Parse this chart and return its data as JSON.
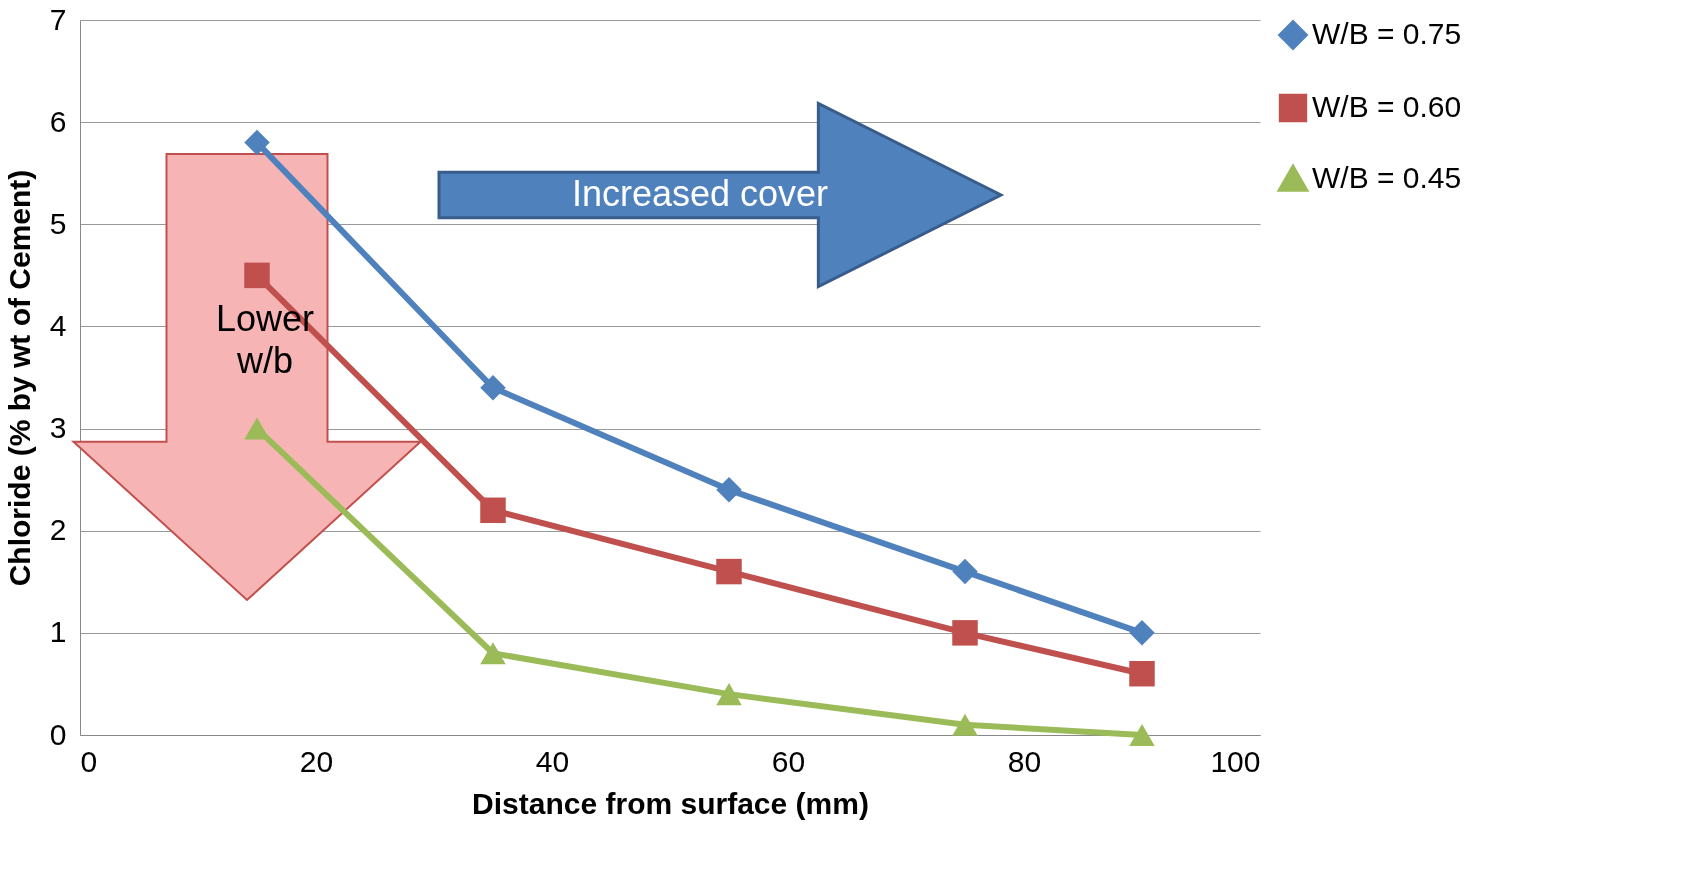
{
  "chart_data": {
    "type": "line",
    "xlabel": "Distance from surface (mm)",
    "ylabel": "Chloride (% by wt of Cement)",
    "x": [
      15,
      35,
      55,
      75,
      90
    ],
    "series": [
      {
        "name": "W/B = 0.75",
        "color": "#4f81bd",
        "marker": "diamond",
        "values": [
          5.8,
          3.4,
          2.4,
          1.6,
          1.0
        ]
      },
      {
        "name": "W/B = 0.60",
        "color": "#c0504d",
        "marker": "square",
        "values": [
          4.5,
          2.2,
          1.6,
          1.0,
          0.6
        ]
      },
      {
        "name": "W/B = 0.45",
        "color": "#9bbb59",
        "marker": "triangle",
        "values": [
          3.0,
          0.8,
          0.4,
          0.1,
          0.0
        ]
      }
    ],
    "xlim": [
      0,
      100
    ],
    "xticks": [
      0,
      20,
      40,
      60,
      80,
      100
    ],
    "ylim": [
      0,
      7
    ],
    "yticks": [
      0,
      1,
      2,
      3,
      4,
      5,
      6,
      7
    ],
    "grid": "y",
    "legend": "right",
    "line_style": "solid",
    "annotations": [
      "Increased cover",
      "Lower w/b"
    ]
  }
}
